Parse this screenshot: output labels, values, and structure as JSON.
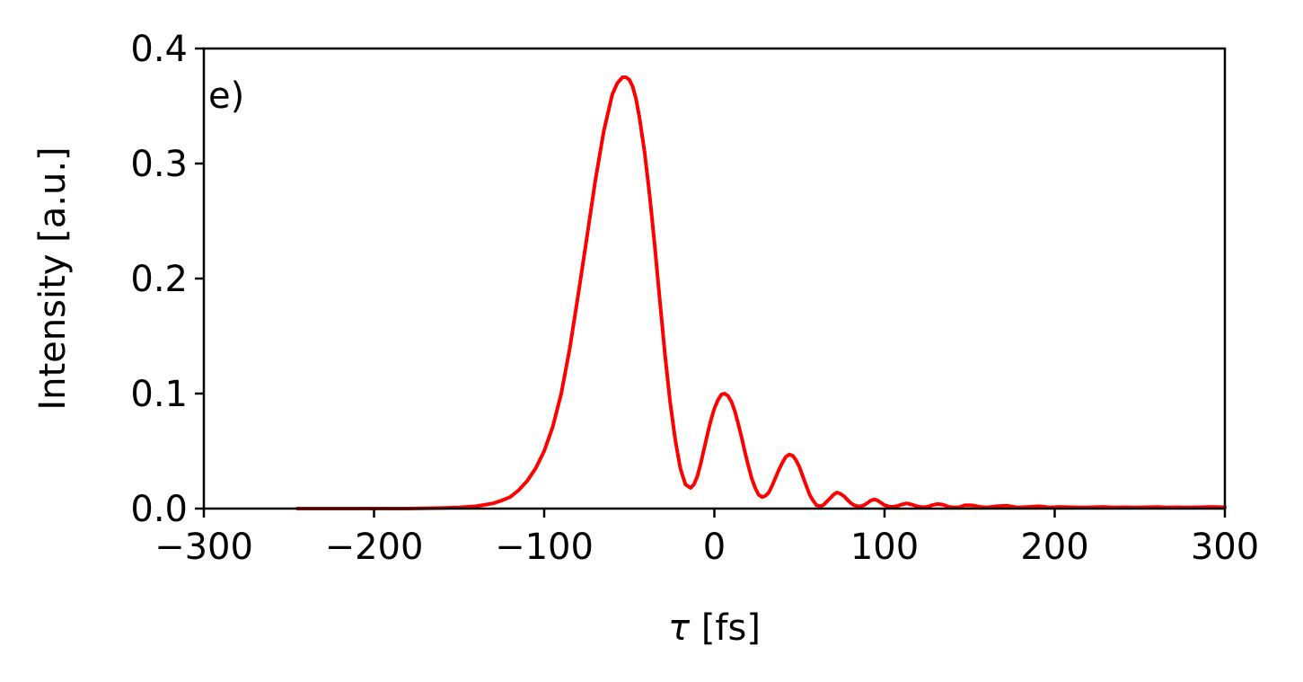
{
  "chart_data": {
    "type": "line",
    "title": "",
    "panel_label": "e)",
    "xlabel_symbol": "τ",
    "xlabel_unit": " [fs]",
    "ylabel": "Intensity [a.u.]",
    "xlim": [
      -300,
      300
    ],
    "ylim": [
      0,
      0.4
    ],
    "xticks": [
      -300,
      -200,
      -100,
      0,
      100,
      200,
      300
    ],
    "xtick_labels": [
      "−300",
      "−200",
      "−100",
      "0",
      "100",
      "200",
      "300"
    ],
    "yticks": [
      0,
      0.1,
      0.2,
      0.3,
      0.4
    ],
    "ytick_labels": [
      "0.0",
      "0.1",
      "0.2",
      "0.3",
      "0.4"
    ],
    "grid": false,
    "series": [
      {
        "color": "#ff0000",
        "x": [
          -245,
          -220,
          -200,
          -180,
          -160,
          -150,
          -140,
          -130,
          -125,
          -120,
          -115,
          -110,
          -105,
          -100,
          -95,
          -90,
          -85,
          -80,
          -75,
          -70,
          -65,
          -60,
          -57,
          -54,
          -52,
          -50,
          -48,
          -46,
          -44,
          -41,
          -38,
          -35,
          -32,
          -29,
          -26,
          -23,
          -20,
          -17,
          -14,
          -12,
          -10,
          -8,
          -6,
          -4,
          -2,
          0,
          2,
          4,
          6,
          8,
          10,
          12,
          14,
          16,
          18,
          20,
          22,
          24,
          26,
          28,
          30,
          32,
          34,
          36,
          38,
          40,
          42,
          44,
          46,
          48,
          50,
          52,
          54,
          56,
          58,
          60,
          62,
          64,
          66,
          68,
          70,
          72,
          74,
          76,
          78,
          80,
          82,
          84,
          86,
          88,
          90,
          92,
          94,
          96,
          98,
          100,
          102,
          104,
          107,
          110,
          113,
          116,
          119,
          122,
          125,
          128,
          131,
          134,
          138,
          141,
          144,
          147,
          150,
          153,
          156,
          160,
          166,
          172,
          178,
          185,
          191,
          197,
          203,
          210,
          216,
          222,
          228,
          235,
          241,
          247,
          253,
          260,
          266,
          272,
          278,
          285,
          291,
          300
        ],
        "y": [
          0.0,
          0.0,
          0.0,
          0.0,
          0.0005,
          0.001,
          0.002,
          0.0045,
          0.007,
          0.01,
          0.016,
          0.024,
          0.035,
          0.05,
          0.071,
          0.1,
          0.139,
          0.186,
          0.235,
          0.285,
          0.328,
          0.36,
          0.37,
          0.375,
          0.375,
          0.373,
          0.367,
          0.356,
          0.34,
          0.31,
          0.272,
          0.228,
          0.18,
          0.134,
          0.093,
          0.06,
          0.035,
          0.021,
          0.018,
          0.021,
          0.028,
          0.039,
          0.052,
          0.065,
          0.077,
          0.087,
          0.094,
          0.099,
          0.1,
          0.098,
          0.093,
          0.085,
          0.074,
          0.062,
          0.049,
          0.037,
          0.026,
          0.018,
          0.012,
          0.01,
          0.011,
          0.014,
          0.02,
          0.027,
          0.034,
          0.04,
          0.045,
          0.047,
          0.046,
          0.042,
          0.036,
          0.028,
          0.02,
          0.012,
          0.007,
          0.003,
          0.002,
          0.003,
          0.006,
          0.009,
          0.012,
          0.014,
          0.013,
          0.011,
          0.008,
          0.005,
          0.003,
          0.002,
          0.002,
          0.003,
          0.005,
          0.007,
          0.008,
          0.007,
          0.005,
          0.003,
          0.002,
          0.0015,
          0.002,
          0.0035,
          0.0045,
          0.0035,
          0.002,
          0.0012,
          0.0015,
          0.003,
          0.004,
          0.0035,
          0.0015,
          0.001,
          0.0012,
          0.0028,
          0.003,
          0.0025,
          0.0015,
          0.001,
          0.002,
          0.0025,
          0.001,
          0.0015,
          0.002,
          0.001,
          0.0015,
          0.0012,
          0.001,
          0.0012,
          0.0015,
          0.001,
          0.0012,
          0.001,
          0.0012,
          0.0013,
          0.001,
          0.0012,
          0.001,
          0.0012,
          0.0015,
          0.0012
        ]
      }
    ]
  }
}
